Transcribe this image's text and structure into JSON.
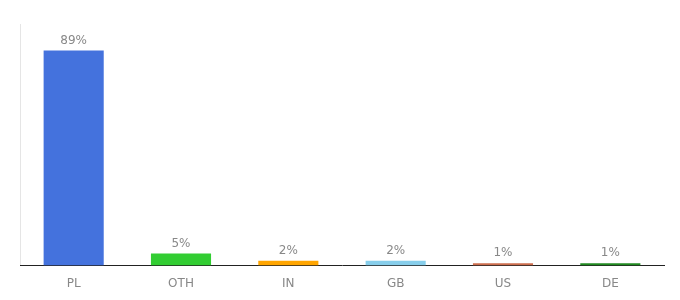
{
  "chart_data": {
    "type": "bar",
    "categories": [
      "PL",
      "OTH",
      "IN",
      "GB",
      "US",
      "DE"
    ],
    "values": [
      89,
      5,
      2,
      2,
      1,
      1
    ],
    "value_labels": [
      "89%",
      "5%",
      "2%",
      "2%",
      "1%",
      "1%"
    ],
    "colors": [
      "#4472dd",
      "#32cd32",
      "#ffa500",
      "#87ceeb",
      "#cd6e4e",
      "#228b22"
    ],
    "ylim": [
      0,
      100
    ],
    "data_labels": true,
    "tick_labels": "x",
    "grid": false
  }
}
